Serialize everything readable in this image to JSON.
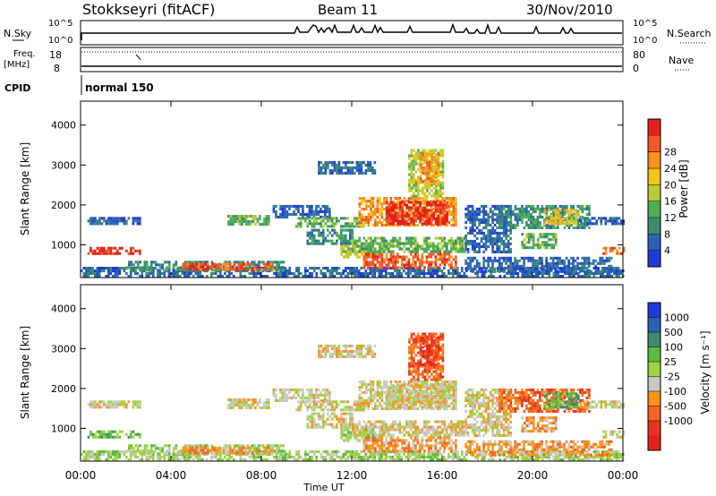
{
  "header": {
    "station": "Stokkseyri (fitACF)",
    "beam": "Beam 11",
    "date": "30/Nov/2010"
  },
  "status_panels": {
    "nsky_label": "N.Sky",
    "nsky_ticks": [
      "10^5",
      "10^0"
    ],
    "nsearch_label": "N.Search",
    "nsearch_ticks": [
      "10^5",
      "10^0"
    ],
    "freq_label": "Freq.",
    "freq_unit": "[MHz]",
    "freq_ticks": [
      "18",
      "8"
    ],
    "nave_label": "Nave",
    "nave_ticks": [
      "80",
      "0"
    ],
    "cpid_label": "CPID",
    "cpid_value": "normal 150"
  },
  "colors": {
    "power": [
      "#1f3bd6",
      "#2c62b4",
      "#3a8d6e",
      "#4fae55",
      "#b7c93a",
      "#f0c418",
      "#f7941d",
      "#f1592a",
      "#e3201b"
    ],
    "velocity": [
      "#1f3bd6",
      "#2c62b4",
      "#3a8d6e",
      "#5cbc3f",
      "#9fd43c",
      "#c8c8c4",
      "#f7941d",
      "#f26522",
      "#e63422",
      "#e3201b"
    ]
  },
  "chart_data": [
    {
      "type": "heatmap",
      "name": "power",
      "xlabel": "",
      "ylabel": "Slant Range [km]",
      "x_ticks": [
        "00:00",
        "04:00",
        "08:00",
        "12:00",
        "16:00",
        "20:00",
        "00:00"
      ],
      "x_range_hours": [
        0,
        24
      ],
      "ylim": [
        180,
        4600
      ],
      "y_ticks": [
        1000,
        2000,
        3000,
        4000
      ],
      "colorbar": {
        "label": "Power [dB]",
        "ticks": [
          "4",
          "8",
          "12",
          "16",
          "20",
          "24",
          "28"
        ]
      },
      "regions": [
        {
          "t0": 0.3,
          "t1": 2.6,
          "r0": 1500,
          "r1": 1700,
          "c": 1
        },
        {
          "t0": 0.3,
          "t1": 2.6,
          "r0": 800,
          "r1": 950,
          "c": 8
        },
        {
          "t0": 0.0,
          "t1": 24.0,
          "r0": 200,
          "r1": 450,
          "c": 1
        },
        {
          "t0": 2.0,
          "t1": 9.0,
          "r0": 350,
          "r1": 600,
          "c": 2
        },
        {
          "t0": 4.5,
          "t1": 8.5,
          "r0": 400,
          "r1": 550,
          "c": 7
        },
        {
          "t0": 6.5,
          "t1": 8.3,
          "r0": 1500,
          "r1": 1750,
          "c": 3
        },
        {
          "t0": 8.5,
          "t1": 11.0,
          "r0": 1700,
          "r1": 2000,
          "c": 1
        },
        {
          "t0": 9.5,
          "t1": 12.5,
          "r0": 1450,
          "r1": 1700,
          "c": 3
        },
        {
          "t0": 10.0,
          "t1": 12.0,
          "r0": 1000,
          "r1": 1400,
          "c": 2
        },
        {
          "t0": 11.5,
          "t1": 13.0,
          "r0": 700,
          "r1": 1000,
          "c": 4
        },
        {
          "t0": 12.3,
          "t1": 16.6,
          "r0": 1500,
          "r1": 2200,
          "c": 6
        },
        {
          "t0": 13.5,
          "t1": 16.2,
          "r0": 1550,
          "r1": 2100,
          "c": 8
        },
        {
          "t0": 12.0,
          "t1": 17.0,
          "r0": 800,
          "r1": 1200,
          "c": 3
        },
        {
          "t0": 12.5,
          "t1": 16.6,
          "r0": 450,
          "r1": 800,
          "c": 7
        },
        {
          "t0": 14.5,
          "t1": 16.0,
          "r0": 2200,
          "r1": 3400,
          "c": 4
        },
        {
          "t0": 15.0,
          "t1": 15.8,
          "r0": 2500,
          "r1": 3300,
          "c": 6
        },
        {
          "t0": 10.5,
          "t1": 13.0,
          "r0": 2800,
          "r1": 3100,
          "c": 1
        },
        {
          "t0": 17.0,
          "t1": 19.0,
          "r0": 800,
          "r1": 2000,
          "c": 1
        },
        {
          "t0": 18.5,
          "t1": 22.5,
          "r0": 1400,
          "r1": 2000,
          "c": 2
        },
        {
          "t0": 20.5,
          "t1": 22.0,
          "r0": 1500,
          "r1": 1900,
          "c": 5
        },
        {
          "t0": 19.5,
          "t1": 21.0,
          "r0": 900,
          "r1": 1300,
          "c": 3
        },
        {
          "t0": 17.0,
          "t1": 23.5,
          "r0": 350,
          "r1": 700,
          "c": 1
        },
        {
          "t0": 22.0,
          "t1": 24.0,
          "r0": 1500,
          "r1": 1700,
          "c": 1
        },
        {
          "t0": 23.1,
          "t1": 24.0,
          "r0": 750,
          "r1": 950,
          "c": 7
        }
      ]
    },
    {
      "type": "heatmap",
      "name": "velocity",
      "xlabel": "Time UT",
      "ylabel": "Slant Range [km]",
      "x_ticks": [
        "00:00",
        "04:00",
        "08:00",
        "12:00",
        "16:00",
        "20:00",
        "00:00"
      ],
      "x_range_hours": [
        0,
        24
      ],
      "ylim": [
        180,
        4600
      ],
      "y_ticks": [
        1000,
        2000,
        3000,
        4000
      ],
      "colorbar": {
        "label": "Velocity [m s⁻¹]",
        "ticks": [
          "1000",
          "500",
          "100",
          "25",
          "-25",
          "-100",
          "-500",
          "-1000"
        ]
      },
      "regions": [
        {
          "t0": 0.3,
          "t1": 2.6,
          "r0": 1500,
          "r1": 1700,
          "c": 5
        },
        {
          "t0": 0.3,
          "t1": 2.6,
          "r0": 800,
          "r1": 950,
          "c": 3
        },
        {
          "t0": 0.0,
          "t1": 24.0,
          "r0": 200,
          "r1": 450,
          "c": 4
        },
        {
          "t0": 2.0,
          "t1": 9.0,
          "r0": 350,
          "r1": 600,
          "c": 4
        },
        {
          "t0": 4.5,
          "t1": 8.5,
          "r0": 400,
          "r1": 550,
          "c": 6
        },
        {
          "t0": 6.5,
          "t1": 8.3,
          "r0": 1500,
          "r1": 1750,
          "c": 5
        },
        {
          "t0": 8.5,
          "t1": 11.0,
          "r0": 1700,
          "r1": 2000,
          "c": 5
        },
        {
          "t0": 9.5,
          "t1": 12.5,
          "r0": 1450,
          "r1": 1700,
          "c": 5
        },
        {
          "t0": 10.0,
          "t1": 12.0,
          "r0": 1000,
          "r1": 1400,
          "c": 5
        },
        {
          "t0": 11.5,
          "t1": 13.0,
          "r0": 700,
          "r1": 1000,
          "c": 4
        },
        {
          "t0": 12.3,
          "t1": 16.6,
          "r0": 1500,
          "r1": 2200,
          "c": 5
        },
        {
          "t0": 13.5,
          "t1": 16.2,
          "r0": 1550,
          "r1": 2100,
          "c": 5
        },
        {
          "t0": 12.0,
          "t1": 17.0,
          "r0": 800,
          "r1": 1200,
          "c": 5
        },
        {
          "t0": 12.5,
          "t1": 16.6,
          "r0": 450,
          "r1": 800,
          "c": 6
        },
        {
          "t0": 14.5,
          "t1": 16.0,
          "r0": 2200,
          "r1": 3400,
          "c": 7
        },
        {
          "t0": 15.0,
          "t1": 15.8,
          "r0": 2500,
          "r1": 3300,
          "c": 8
        },
        {
          "t0": 10.5,
          "t1": 13.0,
          "r0": 2800,
          "r1": 3100,
          "c": 5
        },
        {
          "t0": 17.0,
          "t1": 19.0,
          "r0": 800,
          "r1": 2000,
          "c": 5
        },
        {
          "t0": 18.5,
          "t1": 22.5,
          "r0": 1400,
          "r1": 2000,
          "c": 7
        },
        {
          "t0": 20.5,
          "t1": 22.0,
          "r0": 1500,
          "r1": 1900,
          "c": 3
        },
        {
          "t0": 19.5,
          "t1": 21.0,
          "r0": 900,
          "r1": 1300,
          "c": 6
        },
        {
          "t0": 17.0,
          "t1": 23.5,
          "r0": 350,
          "r1": 700,
          "c": 6
        },
        {
          "t0": 22.0,
          "t1": 24.0,
          "r0": 1500,
          "r1": 1700,
          "c": 5
        },
        {
          "t0": 23.1,
          "t1": 24.0,
          "r0": 750,
          "r1": 950,
          "c": 5
        }
      ]
    }
  ]
}
